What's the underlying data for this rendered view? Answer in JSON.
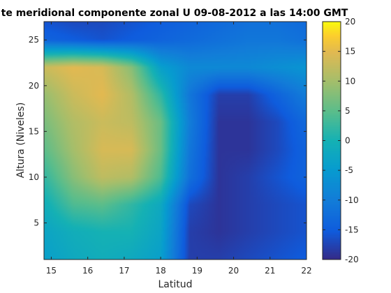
{
  "chart_data": {
    "type": "heatmap",
    "title": "te meridional componente zonal U 09-08-2012 a las 14:00 GMT",
    "xlabel": "Latitud",
    "ylabel": "Altura (Niveles)",
    "xlim": [
      14.8,
      22
    ],
    "ylim": [
      1,
      27
    ],
    "xticks": [
      15,
      16,
      17,
      18,
      19,
      20,
      21,
      22
    ],
    "yticks": [
      5,
      10,
      15,
      20,
      25
    ],
    "colorbar": {
      "limits": [
        -20,
        20
      ],
      "ticks": [
        20,
        15,
        10,
        5,
        0,
        -5,
        -10,
        -15,
        -20
      ],
      "colormap": "parula"
    },
    "field": {
      "x": [
        14.8,
        15.6,
        16.4,
        17.2,
        18.0,
        18.8,
        19.6,
        20.4,
        21.2,
        22.0
      ],
      "y": [
        1,
        4,
        7,
        10,
        13,
        16,
        19,
        22,
        25,
        27
      ],
      "z": [
        [
          -4,
          -2,
          -1,
          -2,
          -4,
          -18,
          -18,
          -17,
          -16,
          -15
        ],
        [
          -3,
          -1,
          0,
          0,
          -3,
          -18,
          -19,
          -18,
          -17,
          -16
        ],
        [
          -1,
          4,
          5,
          2,
          -2,
          -17,
          -19,
          -18,
          -17,
          -16
        ],
        [
          2,
          8,
          12,
          11,
          4,
          -12,
          -19,
          -18,
          -16,
          -14
        ],
        [
          5,
          10,
          14,
          14,
          6,
          -11,
          -19,
          -19,
          -17,
          -14
        ],
        [
          7,
          11,
          13,
          12,
          6,
          -10,
          -19,
          -19,
          -17,
          -13
        ],
        [
          9,
          13,
          15,
          11,
          2,
          -11,
          -18,
          -18,
          -14,
          -10
        ],
        [
          13,
          15,
          14,
          8,
          -4,
          -8,
          -8,
          -8,
          -7,
          -6
        ],
        [
          -14,
          -15,
          -16,
          -15,
          -14,
          -13,
          -12,
          -11,
          -11,
          -12
        ],
        [
          -16,
          -17,
          -17,
          -16,
          -15,
          -14,
          -13,
          -12,
          -12,
          -13
        ]
      ]
    }
  }
}
